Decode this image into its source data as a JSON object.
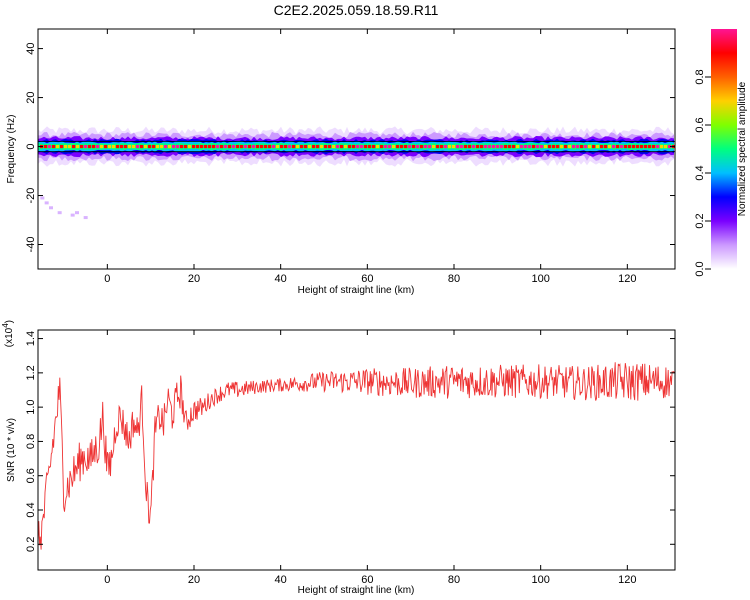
{
  "title": "C2E2.2025.059.18.59.R11",
  "chart_data": [
    {
      "type": "heatmap",
      "xlabel": "Height of straight line (km)",
      "ylabel": "Frequency (Hz)",
      "xlim": [
        -16,
        131
      ],
      "ylim": [
        -50,
        48
      ],
      "xticks": [
        0,
        20,
        40,
        60,
        80,
        100,
        120
      ],
      "yticks": [
        -40,
        -20,
        0,
        20,
        40
      ],
      "band_center_hz": 0,
      "band_halfwidth_hz": 3,
      "scatter_points": [
        [
          -15,
          -21
        ],
        [
          -14,
          -23
        ],
        [
          -13,
          -25
        ],
        [
          -11,
          -27
        ],
        [
          -8,
          -28
        ],
        [
          -7,
          -27
        ],
        [
          -5,
          -29
        ]
      ],
      "colorbar": {
        "label": "Normalized spectral amplitude",
        "range": [
          0,
          1
        ],
        "ticks": [
          0.0,
          0.2,
          0.4,
          0.6,
          0.8
        ],
        "colors": [
          "#ffffff",
          "#cc99ff",
          "#7a00ff",
          "#0000ff",
          "#00bfff",
          "#00ff7f",
          "#7fff00",
          "#ffd000",
          "#ff6000",
          "#ff0000",
          "#ff1493"
        ]
      }
    },
    {
      "type": "line",
      "xlabel": "Height of straight line (km)",
      "ylabel": "SNR (10 * v/v)",
      "multiplier": "(x10",
      "multiplier_exp": "4",
      "multiplier_close": ")",
      "xlim": [
        -16,
        131
      ],
      "ylim": [
        0.05,
        1.45
      ],
      "xticks": [
        0,
        20,
        40,
        60,
        80,
        100,
        120
      ],
      "yticks": [
        0.2,
        0.4,
        0.6,
        0.8,
        1.0,
        1.2,
        1.4
      ],
      "color": "#ee3333",
      "x": [
        -16,
        -15,
        -14,
        -13,
        -12,
        -11,
        -10,
        -9,
        -8,
        -7,
        -6,
        -5,
        -4,
        -3,
        -2,
        -1,
        0,
        1,
        2,
        3,
        4,
        5,
        6,
        7,
        8,
        9,
        10,
        11,
        12,
        13,
        14,
        15,
        16,
        17,
        18,
        19,
        20,
        22,
        24,
        26,
        28,
        30,
        35,
        40,
        45,
        50,
        55,
        60,
        70,
        80,
        90,
        100,
        110,
        120,
        130
      ],
      "y": [
        0.2,
        0.3,
        0.5,
        0.7,
        0.9,
        1.1,
        0.5,
        0.55,
        0.6,
        0.65,
        0.7,
        0.72,
        0.68,
        0.74,
        0.78,
        0.95,
        0.62,
        0.7,
        0.9,
        0.95,
        0.88,
        0.8,
        0.92,
        0.85,
        1.05,
        0.5,
        0.35,
        0.85,
        0.95,
        0.9,
        1.05,
        0.95,
        1.05,
        1.1,
        0.9,
        0.95,
        0.98,
        1.0,
        1.05,
        1.08,
        1.1,
        1.1,
        1.12,
        1.13,
        1.14,
        1.15,
        1.15,
        1.15,
        1.14,
        1.15,
        1.15,
        1.15,
        1.14,
        1.15,
        1.15
      ],
      "noise": [
        0.12,
        0.12,
        0.12,
        0.12,
        0.12,
        0.12,
        0.12,
        0.12,
        0.12,
        0.12,
        0.12,
        0.12,
        0.12,
        0.12,
        0.12,
        0.12,
        0.12,
        0.12,
        0.1,
        0.1,
        0.1,
        0.1,
        0.1,
        0.1,
        0.1,
        0.1,
        0.1,
        0.1,
        0.1,
        0.1,
        0.1,
        0.1,
        0.1,
        0.1,
        0.08,
        0.08,
        0.07,
        0.06,
        0.05,
        0.05,
        0.05,
        0.05,
        0.04,
        0.04,
        0.05,
        0.06,
        0.07,
        0.08,
        0.09,
        0.1,
        0.1,
        0.1,
        0.1,
        0.12,
        0.1
      ]
    }
  ]
}
